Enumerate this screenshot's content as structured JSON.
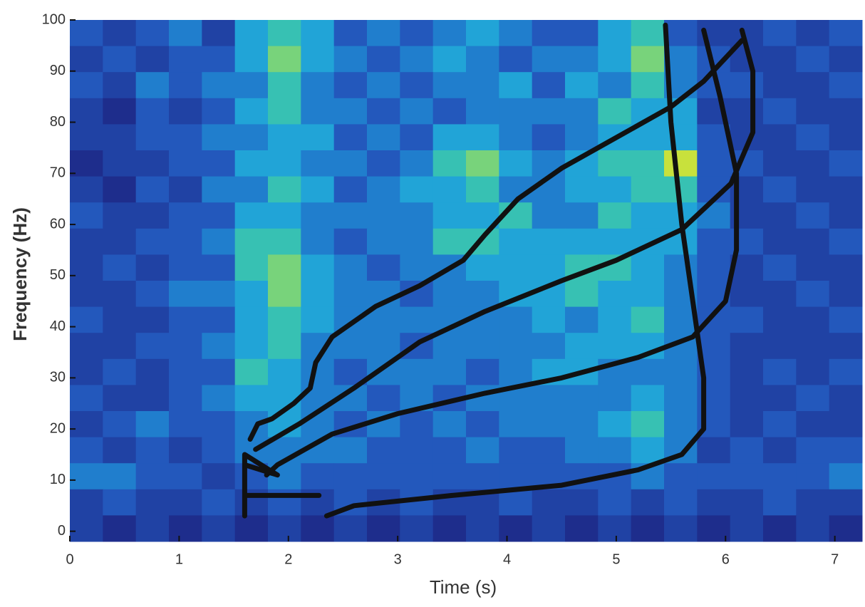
{
  "chart_data": {
    "type": "heatmap",
    "xlabel": "Time (s)",
    "ylabel": "Frequency (Hz)",
    "xlim": [
      0,
      7.25
    ],
    "ylim": [
      -2,
      100
    ],
    "xticks": [
      0,
      1,
      2,
      3,
      4,
      5,
      6,
      7
    ],
    "yticks": [
      0,
      10,
      20,
      30,
      40,
      50,
      60,
      70,
      80,
      90,
      100
    ],
    "heatmap": {
      "z": [
        [
          3,
          2,
          3,
          4,
          2,
          5,
          6,
          5,
          3,
          4,
          3,
          4,
          5,
          4,
          3,
          3,
          5,
          6,
          3,
          2,
          2,
          3,
          2,
          3
        ],
        [
          2,
          3,
          2,
          3,
          3,
          5,
          7,
          5,
          4,
          3,
          4,
          5,
          4,
          3,
          4,
          4,
          5,
          7,
          4,
          3,
          2,
          2,
          3,
          2
        ],
        [
          3,
          2,
          4,
          3,
          4,
          4,
          6,
          4,
          3,
          4,
          3,
          4,
          4,
          5,
          3,
          5,
          4,
          6,
          4,
          3,
          3,
          2,
          2,
          3
        ],
        [
          2,
          1,
          3,
          2,
          3,
          5,
          6,
          4,
          4,
          3,
          4,
          3,
          4,
          4,
          4,
          4,
          6,
          5,
          5,
          2,
          2,
          3,
          2,
          2
        ],
        [
          2,
          2,
          3,
          3,
          4,
          4,
          5,
          5,
          3,
          4,
          3,
          5,
          5,
          4,
          3,
          4,
          5,
          5,
          5,
          3,
          2,
          2,
          3,
          2
        ],
        [
          1,
          2,
          2,
          3,
          3,
          5,
          5,
          4,
          4,
          3,
          4,
          6,
          7,
          5,
          4,
          5,
          6,
          6,
          8,
          3,
          3,
          2,
          2,
          3
        ],
        [
          2,
          1,
          3,
          2,
          4,
          4,
          6,
          5,
          3,
          4,
          5,
          5,
          6,
          4,
          4,
          5,
          5,
          6,
          6,
          3,
          2,
          3,
          2,
          2
        ],
        [
          3,
          2,
          2,
          3,
          3,
          5,
          5,
          4,
          4,
          4,
          4,
          5,
          5,
          6,
          4,
          4,
          6,
          5,
          5,
          4,
          2,
          2,
          3,
          2
        ],
        [
          2,
          2,
          3,
          3,
          4,
          6,
          6,
          4,
          3,
          4,
          4,
          6,
          6,
          5,
          5,
          5,
          5,
          5,
          5,
          3,
          3,
          2,
          2,
          3
        ],
        [
          2,
          3,
          2,
          3,
          3,
          6,
          7,
          5,
          4,
          3,
          4,
          4,
          5,
          5,
          5,
          6,
          6,
          5,
          4,
          3,
          2,
          3,
          2,
          2
        ],
        [
          2,
          2,
          3,
          4,
          4,
          5,
          7,
          5,
          4,
          4,
          3,
          4,
          4,
          5,
          5,
          6,
          5,
          5,
          4,
          3,
          2,
          2,
          3,
          2
        ],
        [
          3,
          2,
          2,
          3,
          3,
          5,
          6,
          5,
          4,
          4,
          4,
          4,
          4,
          4,
          5,
          4,
          5,
          6,
          4,
          3,
          3,
          2,
          2,
          3
        ],
        [
          2,
          2,
          3,
          3,
          4,
          5,
          6,
          4,
          4,
          4,
          3,
          4,
          4,
          4,
          4,
          5,
          5,
          5,
          4,
          3,
          2,
          2,
          2,
          2
        ],
        [
          2,
          3,
          2,
          3,
          3,
          6,
          5,
          4,
          3,
          4,
          4,
          4,
          3,
          4,
          5,
          5,
          4,
          4,
          4,
          3,
          2,
          3,
          2,
          3
        ],
        [
          3,
          2,
          2,
          3,
          4,
          5,
          5,
          4,
          4,
          3,
          4,
          3,
          4,
          4,
          4,
          4,
          4,
          5,
          4,
          3,
          2,
          2,
          3,
          2
        ],
        [
          2,
          3,
          4,
          3,
          3,
          4,
          5,
          4,
          3,
          4,
          3,
          4,
          3,
          4,
          4,
          4,
          5,
          6,
          4,
          3,
          2,
          3,
          2,
          2
        ],
        [
          3,
          2,
          3,
          2,
          3,
          4,
          4,
          4,
          4,
          3,
          3,
          3,
          4,
          3,
          3,
          4,
          4,
          5,
          4,
          2,
          3,
          2,
          3,
          3
        ],
        [
          4,
          4,
          3,
          3,
          2,
          3,
          4,
          3,
          3,
          3,
          3,
          3,
          3,
          3,
          3,
          3,
          3,
          4,
          3,
          3,
          3,
          3,
          3,
          4
        ],
        [
          2,
          3,
          2,
          2,
          3,
          2,
          3,
          2,
          3,
          2,
          3,
          2,
          2,
          3,
          2,
          2,
          3,
          2,
          3,
          2,
          2,
          3,
          2,
          2
        ],
        [
          2,
          1,
          2,
          1,
          2,
          1,
          2,
          1,
          2,
          1,
          2,
          1,
          2,
          1,
          2,
          1,
          2,
          1,
          2,
          1,
          2,
          1,
          2,
          1
        ]
      ]
    },
    "line_color": "#111111",
    "series": [
      {
        "x": [
          1.65,
          1.72,
          1.85,
          2.05,
          2.2,
          2.25,
          2.4,
          2.8,
          3.2,
          3.6,
          3.8,
          4.1,
          4.5,
          5.0,
          5.5,
          5.8,
          6.15
        ],
        "values": [
          18,
          21,
          22,
          25,
          28,
          33,
          38,
          44,
          48,
          53,
          58,
          65,
          71,
          77,
          83,
          88,
          96
        ]
      },
      {
        "x": [
          1.7,
          2.1,
          2.6,
          3.2,
          3.8,
          4.5,
          5.0,
          5.6,
          6.05,
          6.25,
          6.25,
          6.15
        ],
        "values": [
          16,
          21,
          28,
          37,
          43,
          49,
          53,
          59,
          68,
          78,
          90,
          98
        ]
      },
      {
        "x": [
          1.8,
          1.9,
          2.4,
          3.0,
          3.8,
          4.5,
          5.2,
          5.7,
          6.0,
          6.1,
          6.1,
          5.95,
          5.8
        ],
        "values": [
          11,
          13,
          19,
          23,
          27,
          30,
          34,
          38,
          45,
          55,
          70,
          85,
          98
        ]
      },
      {
        "x": [
          2.35,
          2.6,
          3.5,
          4.5,
          5.2,
          5.6,
          5.8,
          5.8,
          5.7,
          5.6,
          5.5,
          5.45
        ],
        "values": [
          3,
          5,
          7,
          9,
          12,
          15,
          20,
          30,
          45,
          60,
          80,
          99
        ]
      },
      {
        "x": [
          1.6,
          1.6,
          1.9,
          1.6,
          1.6,
          2.28
        ],
        "values": [
          3,
          15,
          11,
          13,
          7,
          7
        ]
      }
    ]
  }
}
